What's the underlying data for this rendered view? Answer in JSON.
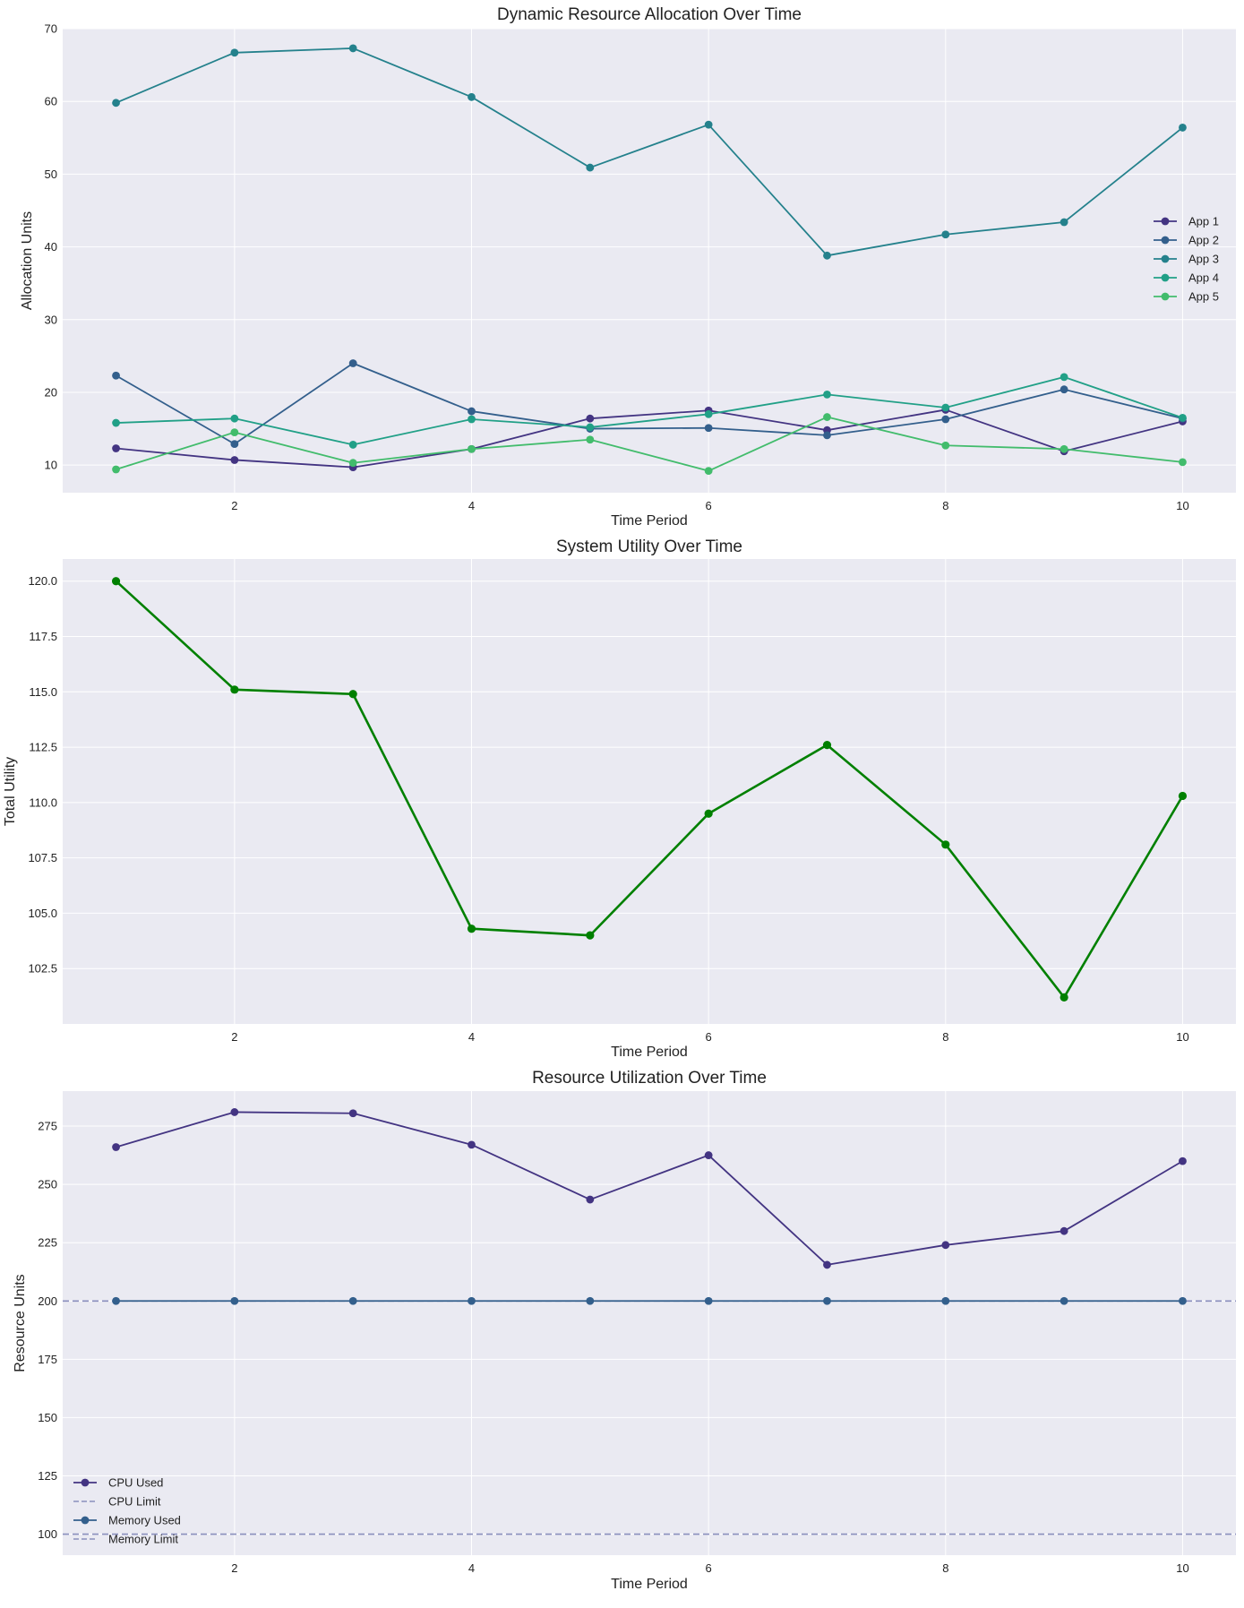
{
  "style": {
    "plot_background": "#eaeaf2",
    "grid_color": "#ffffff",
    "utility_color": "#008000",
    "app_colors": [
      "#433482",
      "#335f8c",
      "#24818c",
      "#21a087",
      "#42bc6c"
    ],
    "cpu_color": "#433482",
    "memory_color": "#335f8c",
    "limit_line_color": "#8a8fbd"
  },
  "chart_data": [
    {
      "type": "line",
      "title": "Dynamic Resource Allocation Over Time",
      "xlabel": "Time Period",
      "ylabel": "Allocation Units",
      "xlim": [
        0.55,
        10.45
      ],
      "ylim": [
        6.2,
        70
      ],
      "xticks": [
        2,
        4,
        6,
        8,
        10
      ],
      "yticks": [
        10,
        20,
        30,
        40,
        50,
        60,
        70
      ],
      "grid": true,
      "legend_position": "right",
      "x": [
        1,
        2,
        3,
        4,
        5,
        6,
        7,
        8,
        9,
        10
      ],
      "series": [
        {
          "name": "App 1",
          "values": [
            12.3,
            10.7,
            9.7,
            12.2,
            16.4,
            17.5,
            14.8,
            17.6,
            11.9,
            16.0
          ]
        },
        {
          "name": "App 2",
          "values": [
            22.3,
            12.9,
            24.0,
            17.4,
            15.0,
            15.1,
            14.1,
            16.3,
            20.4,
            16.4
          ]
        },
        {
          "name": "App 3",
          "values": [
            59.8,
            66.7,
            67.3,
            60.6,
            50.9,
            56.8,
            38.8,
            41.7,
            43.4,
            56.4
          ]
        },
        {
          "name": "App 4",
          "values": [
            15.8,
            16.4,
            12.8,
            16.3,
            15.2,
            17.0,
            19.7,
            17.9,
            22.1,
            16.5
          ]
        },
        {
          "name": "App 5",
          "values": [
            9.4,
            14.5,
            10.3,
            12.2,
            13.5,
            9.2,
            16.6,
            12.7,
            12.2,
            10.4
          ]
        }
      ]
    },
    {
      "type": "line",
      "title": "System Utility Over Time",
      "xlabel": "Time Period",
      "ylabel": "Total Utility",
      "xlim": [
        0.55,
        10.45
      ],
      "ylim": [
        100.0,
        121.0
      ],
      "xticks": [
        2,
        4,
        6,
        8,
        10
      ],
      "yticks": [
        102.5,
        105.0,
        107.5,
        110.0,
        112.5,
        115.0,
        117.5,
        120.0
      ],
      "ytick_labels": [
        "102.5",
        "105.0",
        "107.5",
        "110.0",
        "112.5",
        "115.0",
        "117.5",
        "120.0"
      ],
      "grid": true,
      "x": [
        1,
        2,
        3,
        4,
        5,
        6,
        7,
        8,
        9,
        10
      ],
      "series": [
        {
          "values": [
            120.0,
            115.1,
            114.9,
            104.3,
            104.0,
            109.5,
            112.6,
            108.1,
            101.2,
            110.3
          ]
        }
      ]
    },
    {
      "type": "line",
      "title": "Resource Utilization Over Time",
      "xlabel": "Time Period",
      "ylabel": "Resource Units",
      "xlim": [
        0.55,
        10.45
      ],
      "ylim": [
        91,
        290
      ],
      "xticks": [
        2,
        4,
        6,
        8,
        10
      ],
      "yticks": [
        100,
        125,
        150,
        175,
        200,
        225,
        250,
        275
      ],
      "grid": true,
      "legend_position": "lower-left",
      "x": [
        1,
        2,
        3,
        4,
        5,
        6,
        7,
        8,
        9,
        10
      ],
      "series": [
        {
          "name": "CPU Used",
          "values": [
            266,
            281,
            280.5,
            267,
            243.5,
            262.5,
            215.5,
            224,
            230,
            260
          ],
          "style": "solid-marker"
        },
        {
          "name": "CPU Limit",
          "constant": 200,
          "style": "dashed"
        },
        {
          "name": "Memory Used",
          "values": [
            200,
            200,
            200,
            200,
            200,
            200,
            200,
            200,
            200,
            200
          ],
          "style": "solid-marker"
        },
        {
          "name": "Memory Limit",
          "constant": 100,
          "style": "dashed"
        }
      ]
    }
  ]
}
